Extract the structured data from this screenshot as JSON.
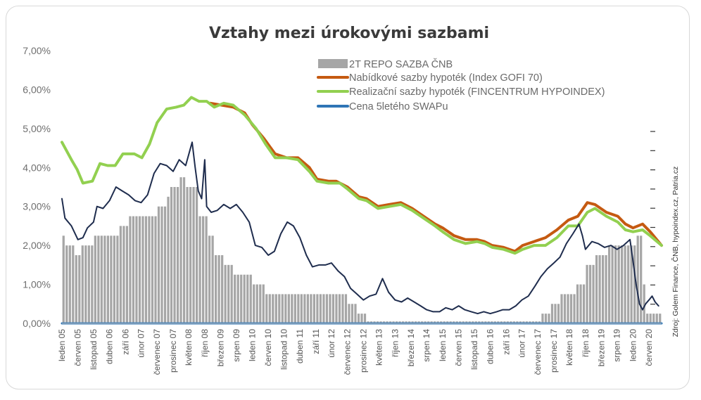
{
  "chart_data": {
    "type": "bar+line",
    "title": "Vztahy mezi úrokovými sazbami",
    "source": "Zdroj: Golem Finance, ČNB, hypoindex.cz,  Patria.cz",
    "ylim": [
      0,
      7
    ],
    "y_ticks": [
      "0,00%",
      "1,00%",
      "2,00%",
      "3,00%",
      "4,00%",
      "5,00%",
      "6,00%",
      "7,00%"
    ],
    "x_domain": [
      2005.0,
      2020.75
    ],
    "x_ticks": [
      {
        "label": "leden 05",
        "t": 2005.0
      },
      {
        "label": "červen 05",
        "t": 2005.42
      },
      {
        "label": "listopad 05",
        "t": 2005.83
      },
      {
        "label": "duben 06",
        "t": 2006.25
      },
      {
        "label": "září 06",
        "t": 2006.67
      },
      {
        "label": "únor 07",
        "t": 2007.08
      },
      {
        "label": "červenec 07",
        "t": 2007.5
      },
      {
        "label": "prosinec 07",
        "t": 2007.92
      },
      {
        "label": "květen 08",
        "t": 2008.33
      },
      {
        "label": "říjen 08",
        "t": 2008.75
      },
      {
        "label": "březen 09",
        "t": 2009.17
      },
      {
        "label": "srpen 09",
        "t": 2009.58
      },
      {
        "label": "leden 10",
        "t": 2010.0
      },
      {
        "label": "červen 10",
        "t": 2010.42
      },
      {
        "label": "listopad 10",
        "t": 2010.83
      },
      {
        "label": "duben 11",
        "t": 2011.25
      },
      {
        "label": "září 11",
        "t": 2011.67
      },
      {
        "label": "únor 12",
        "t": 2012.08
      },
      {
        "label": "červenec 12",
        "t": 2012.5
      },
      {
        "label": "prosinec 12",
        "t": 2012.92
      },
      {
        "label": "květen 13",
        "t": 2013.33
      },
      {
        "label": "říjen 13",
        "t": 2013.75
      },
      {
        "label": "březen 14",
        "t": 2014.17
      },
      {
        "label": "srpen 14",
        "t": 2014.58
      },
      {
        "label": "leden 15",
        "t": 2015.0
      },
      {
        "label": "červen 15",
        "t": 2015.42
      },
      {
        "label": "listopad 15",
        "t": 2015.83
      },
      {
        "label": "duben 16",
        "t": 2016.25
      },
      {
        "label": "září 16",
        "t": 2016.67
      },
      {
        "label": "únor 17",
        "t": 2017.08
      },
      {
        "label": "červenec 17",
        "t": 2017.5
      },
      {
        "label": "prosinec 17",
        "t": 2017.92
      },
      {
        "label": "květen 18",
        "t": 2018.33
      },
      {
        "label": "říjen 18",
        "t": 2018.75
      },
      {
        "label": "březen 19",
        "t": 2019.17
      },
      {
        "label": "srpen 19",
        "t": 2019.58
      },
      {
        "label": "leden 20",
        "t": 2020.0
      },
      {
        "label": "červen 20",
        "t": 2020.42
      }
    ],
    "series": [
      {
        "name": "2T REPO SAZBA ČNB",
        "kind": "bar",
        "color": "#a6a6a6",
        "steps": [
          [
            2005.0,
            2.25
          ],
          [
            2005.08,
            2.0
          ],
          [
            2005.33,
            1.75
          ],
          [
            2005.42,
            2.0
          ],
          [
            2005.83,
            2.25
          ],
          [
            2006.5,
            2.5
          ],
          [
            2006.67,
            2.75
          ],
          [
            2007.42,
            3.0
          ],
          [
            2007.67,
            3.25
          ],
          [
            2007.83,
            3.5
          ],
          [
            2008.08,
            3.75
          ],
          [
            2008.17,
            3.5
          ],
          [
            2008.58,
            2.75
          ],
          [
            2008.83,
            2.25
          ],
          [
            2009.0,
            1.75
          ],
          [
            2009.17,
            1.5
          ],
          [
            2009.42,
            1.25
          ],
          [
            2009.92,
            1.0
          ],
          [
            2010.33,
            0.75
          ],
          [
            2012.5,
            0.5
          ],
          [
            2012.75,
            0.25
          ],
          [
            2012.92,
            0.05
          ],
          [
            2017.58,
            0.25
          ],
          [
            2017.83,
            0.5
          ],
          [
            2018.08,
            0.75
          ],
          [
            2018.5,
            1.0
          ],
          [
            2018.67,
            1.25
          ],
          [
            2018.75,
            1.5
          ],
          [
            2018.92,
            1.75
          ],
          [
            2019.33,
            2.0
          ],
          [
            2020.08,
            2.25
          ],
          [
            2020.17,
            1.75
          ],
          [
            2020.25,
            1.0
          ],
          [
            2020.33,
            0.25
          ]
        ],
        "end": 2020.75
      },
      {
        "name": "Nabídkové sazby hypoték (Index GOFI 70)",
        "kind": "line",
        "color": "#c55a11",
        "points": [
          [
            2008.9,
            5.65
          ],
          [
            2009.2,
            5.6
          ],
          [
            2009.5,
            5.55
          ],
          [
            2009.8,
            5.4
          ],
          [
            2010.0,
            5.1
          ],
          [
            2010.3,
            4.75
          ],
          [
            2010.6,
            4.35
          ],
          [
            2010.9,
            4.25
          ],
          [
            2011.2,
            4.25
          ],
          [
            2011.5,
            4.0
          ],
          [
            2011.7,
            3.7
          ],
          [
            2012.0,
            3.65
          ],
          [
            2012.2,
            3.65
          ],
          [
            2012.5,
            3.5
          ],
          [
            2012.8,
            3.25
          ],
          [
            2013.0,
            3.2
          ],
          [
            2013.3,
            3.0
          ],
          [
            2013.6,
            3.05
          ],
          [
            2013.9,
            3.1
          ],
          [
            2014.2,
            2.95
          ],
          [
            2014.5,
            2.75
          ],
          [
            2014.8,
            2.55
          ],
          [
            2015.0,
            2.45
          ],
          [
            2015.3,
            2.25
          ],
          [
            2015.6,
            2.15
          ],
          [
            2015.9,
            2.15
          ],
          [
            2016.1,
            2.1
          ],
          [
            2016.3,
            2.0
          ],
          [
            2016.6,
            1.95
          ],
          [
            2016.9,
            1.85
          ],
          [
            2017.1,
            2.0
          ],
          [
            2017.4,
            2.1
          ],
          [
            2017.7,
            2.2
          ],
          [
            2018.0,
            2.4
          ],
          [
            2018.3,
            2.65
          ],
          [
            2018.55,
            2.75
          ],
          [
            2018.8,
            3.1
          ],
          [
            2019.0,
            3.05
          ],
          [
            2019.3,
            2.85
          ],
          [
            2019.6,
            2.75
          ],
          [
            2019.8,
            2.55
          ],
          [
            2020.0,
            2.45
          ],
          [
            2020.25,
            2.55
          ],
          [
            2020.45,
            2.35
          ],
          [
            2020.75,
            2.0
          ]
        ]
      },
      {
        "name": "Realizační sazby hypoték (FINCENTRUM HYPOINDEX)",
        "kind": "line",
        "color": "#92d050",
        "points": [
          [
            2005.0,
            4.65
          ],
          [
            2005.25,
            4.2
          ],
          [
            2005.4,
            3.95
          ],
          [
            2005.55,
            3.6
          ],
          [
            2005.8,
            3.65
          ],
          [
            2006.0,
            4.1
          ],
          [
            2006.2,
            4.05
          ],
          [
            2006.4,
            4.05
          ],
          [
            2006.6,
            4.35
          ],
          [
            2006.9,
            4.35
          ],
          [
            2007.1,
            4.25
          ],
          [
            2007.3,
            4.6
          ],
          [
            2007.5,
            5.15
          ],
          [
            2007.75,
            5.5
          ],
          [
            2008.0,
            5.55
          ],
          [
            2008.2,
            5.6
          ],
          [
            2008.4,
            5.8
          ],
          [
            2008.6,
            5.7
          ],
          [
            2008.8,
            5.7
          ],
          [
            2009.0,
            5.55
          ],
          [
            2009.25,
            5.65
          ],
          [
            2009.5,
            5.6
          ],
          [
            2009.8,
            5.35
          ],
          [
            2010.1,
            5.0
          ],
          [
            2010.35,
            4.6
          ],
          [
            2010.6,
            4.25
          ],
          [
            2010.9,
            4.25
          ],
          [
            2011.2,
            4.2
          ],
          [
            2011.5,
            3.9
          ],
          [
            2011.7,
            3.65
          ],
          [
            2012.0,
            3.6
          ],
          [
            2012.3,
            3.6
          ],
          [
            2012.5,
            3.45
          ],
          [
            2012.8,
            3.2
          ],
          [
            2013.0,
            3.15
          ],
          [
            2013.3,
            2.95
          ],
          [
            2013.6,
            3.0
          ],
          [
            2013.9,
            3.05
          ],
          [
            2014.2,
            2.9
          ],
          [
            2014.5,
            2.7
          ],
          [
            2014.8,
            2.5
          ],
          [
            2015.0,
            2.35
          ],
          [
            2015.3,
            2.15
          ],
          [
            2015.6,
            2.05
          ],
          [
            2015.9,
            2.1
          ],
          [
            2016.1,
            2.05
          ],
          [
            2016.3,
            1.95
          ],
          [
            2016.6,
            1.9
          ],
          [
            2016.9,
            1.8
          ],
          [
            2017.1,
            1.9
          ],
          [
            2017.4,
            2.0
          ],
          [
            2017.7,
            2.0
          ],
          [
            2018.0,
            2.2
          ],
          [
            2018.3,
            2.5
          ],
          [
            2018.55,
            2.5
          ],
          [
            2018.8,
            2.85
          ],
          [
            2019.0,
            2.95
          ],
          [
            2019.3,
            2.75
          ],
          [
            2019.6,
            2.6
          ],
          [
            2019.8,
            2.4
          ],
          [
            2020.0,
            2.35
          ],
          [
            2020.25,
            2.4
          ],
          [
            2020.45,
            2.25
          ],
          [
            2020.75,
            2.0
          ]
        ]
      },
      {
        "name": "Cena 5letého SWAPu",
        "kind": "line",
        "color": "#2e75b6",
        "points": [
          [
            2005.0,
            0.0
          ],
          [
            2020.75,
            0.0
          ]
        ]
      },
      {
        "name": "",
        "kind": "line",
        "color": "#1f2d4e",
        "points": [
          [
            2005.0,
            3.2
          ],
          [
            2005.08,
            2.7
          ],
          [
            2005.25,
            2.5
          ],
          [
            2005.42,
            2.15
          ],
          [
            2005.55,
            2.2
          ],
          [
            2005.67,
            2.45
          ],
          [
            2005.83,
            2.6
          ],
          [
            2005.92,
            3.0
          ],
          [
            2006.08,
            2.95
          ],
          [
            2006.25,
            3.15
          ],
          [
            2006.42,
            3.5
          ],
          [
            2006.58,
            3.4
          ],
          [
            2006.75,
            3.3
          ],
          [
            2006.92,
            3.15
          ],
          [
            2007.08,
            3.1
          ],
          [
            2007.25,
            3.3
          ],
          [
            2007.42,
            3.85
          ],
          [
            2007.58,
            4.1
          ],
          [
            2007.75,
            4.05
          ],
          [
            2007.92,
            3.9
          ],
          [
            2008.08,
            4.2
          ],
          [
            2008.25,
            4.05
          ],
          [
            2008.42,
            4.65
          ],
          [
            2008.5,
            4.0
          ],
          [
            2008.58,
            3.4
          ],
          [
            2008.67,
            3.2
          ],
          [
            2008.75,
            4.2
          ],
          [
            2008.8,
            3.0
          ],
          [
            2008.92,
            2.85
          ],
          [
            2009.08,
            2.9
          ],
          [
            2009.25,
            3.05
          ],
          [
            2009.42,
            2.95
          ],
          [
            2009.58,
            3.05
          ],
          [
            2009.75,
            2.85
          ],
          [
            2009.92,
            2.6
          ],
          [
            2010.08,
            2.0
          ],
          [
            2010.25,
            1.95
          ],
          [
            2010.42,
            1.75
          ],
          [
            2010.58,
            1.85
          ],
          [
            2010.75,
            2.3
          ],
          [
            2010.92,
            2.6
          ],
          [
            2011.08,
            2.5
          ],
          [
            2011.25,
            2.2
          ],
          [
            2011.42,
            1.75
          ],
          [
            2011.58,
            1.45
          ],
          [
            2011.75,
            1.5
          ],
          [
            2011.92,
            1.5
          ],
          [
            2012.08,
            1.55
          ],
          [
            2012.25,
            1.35
          ],
          [
            2012.42,
            1.2
          ],
          [
            2012.58,
            0.9
          ],
          [
            2012.75,
            0.75
          ],
          [
            2012.92,
            0.6
          ],
          [
            2013.08,
            0.7
          ],
          [
            2013.25,
            0.75
          ],
          [
            2013.42,
            1.15
          ],
          [
            2013.58,
            0.8
          ],
          [
            2013.75,
            0.6
          ],
          [
            2013.92,
            0.55
          ],
          [
            2014.08,
            0.65
          ],
          [
            2014.25,
            0.55
          ],
          [
            2014.42,
            0.45
          ],
          [
            2014.58,
            0.35
          ],
          [
            2014.75,
            0.3
          ],
          [
            2014.92,
            0.3
          ],
          [
            2015.08,
            0.4
          ],
          [
            2015.25,
            0.35
          ],
          [
            2015.42,
            0.45
          ],
          [
            2015.58,
            0.35
          ],
          [
            2015.75,
            0.3
          ],
          [
            2015.92,
            0.25
          ],
          [
            2016.08,
            0.3
          ],
          [
            2016.25,
            0.25
          ],
          [
            2016.42,
            0.3
          ],
          [
            2016.58,
            0.35
          ],
          [
            2016.75,
            0.35
          ],
          [
            2016.92,
            0.45
          ],
          [
            2017.08,
            0.6
          ],
          [
            2017.25,
            0.7
          ],
          [
            2017.42,
            0.95
          ],
          [
            2017.58,
            1.2
          ],
          [
            2017.75,
            1.4
          ],
          [
            2017.92,
            1.55
          ],
          [
            2018.08,
            1.7
          ],
          [
            2018.25,
            2.05
          ],
          [
            2018.42,
            2.3
          ],
          [
            2018.58,
            2.55
          ],
          [
            2018.67,
            2.25
          ],
          [
            2018.75,
            1.9
          ],
          [
            2018.92,
            2.1
          ],
          [
            2019.08,
            2.05
          ],
          [
            2019.25,
            1.95
          ],
          [
            2019.42,
            2.0
          ],
          [
            2019.58,
            1.9
          ],
          [
            2019.75,
            2.0
          ],
          [
            2019.92,
            2.15
          ],
          [
            2020.0,
            1.6
          ],
          [
            2020.08,
            1.0
          ],
          [
            2020.17,
            0.5
          ],
          [
            2020.25,
            0.35
          ],
          [
            2020.33,
            0.5
          ],
          [
            2020.42,
            0.6
          ],
          [
            2020.5,
            0.7
          ],
          [
            2020.58,
            0.55
          ],
          [
            2020.67,
            0.45
          ]
        ]
      }
    ]
  }
}
